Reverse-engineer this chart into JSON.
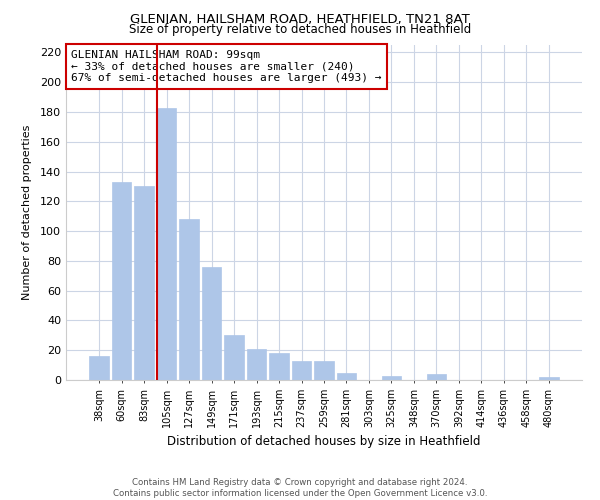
{
  "title": "GLENIAN, HAILSHAM ROAD, HEATHFIELD, TN21 8AT",
  "subtitle": "Size of property relative to detached houses in Heathfield",
  "xlabel": "Distribution of detached houses by size in Heathfield",
  "ylabel": "Number of detached properties",
  "bar_labels": [
    "38sqm",
    "60sqm",
    "83sqm",
    "105sqm",
    "127sqm",
    "149sqm",
    "171sqm",
    "193sqm",
    "215sqm",
    "237sqm",
    "259sqm",
    "281sqm",
    "303sqm",
    "325sqm",
    "348sqm",
    "370sqm",
    "392sqm",
    "414sqm",
    "436sqm",
    "458sqm",
    "480sqm"
  ],
  "bar_values": [
    16,
    133,
    130,
    183,
    108,
    76,
    30,
    21,
    18,
    13,
    13,
    5,
    0,
    3,
    0,
    4,
    0,
    0,
    0,
    0,
    2
  ],
  "bar_color": "#aec6e8",
  "bar_edgecolor": "#aec6e8",
  "vline_x": 2.575,
  "vline_color": "#cc0000",
  "annotation_title": "GLENIAN HAILSHAM ROAD: 99sqm",
  "annotation_line1": "← 33% of detached houses are smaller (240)",
  "annotation_line2": "67% of semi-detached houses are larger (493) →",
  "ylim": [
    0,
    225
  ],
  "yticks": [
    0,
    20,
    40,
    60,
    80,
    100,
    120,
    140,
    160,
    180,
    200,
    220
  ],
  "footer_line1": "Contains HM Land Registry data © Crown copyright and database right 2024.",
  "footer_line2": "Contains public sector information licensed under the Open Government Licence v3.0.",
  "bg_color": "#ffffff",
  "grid_color": "#ccd5e5"
}
